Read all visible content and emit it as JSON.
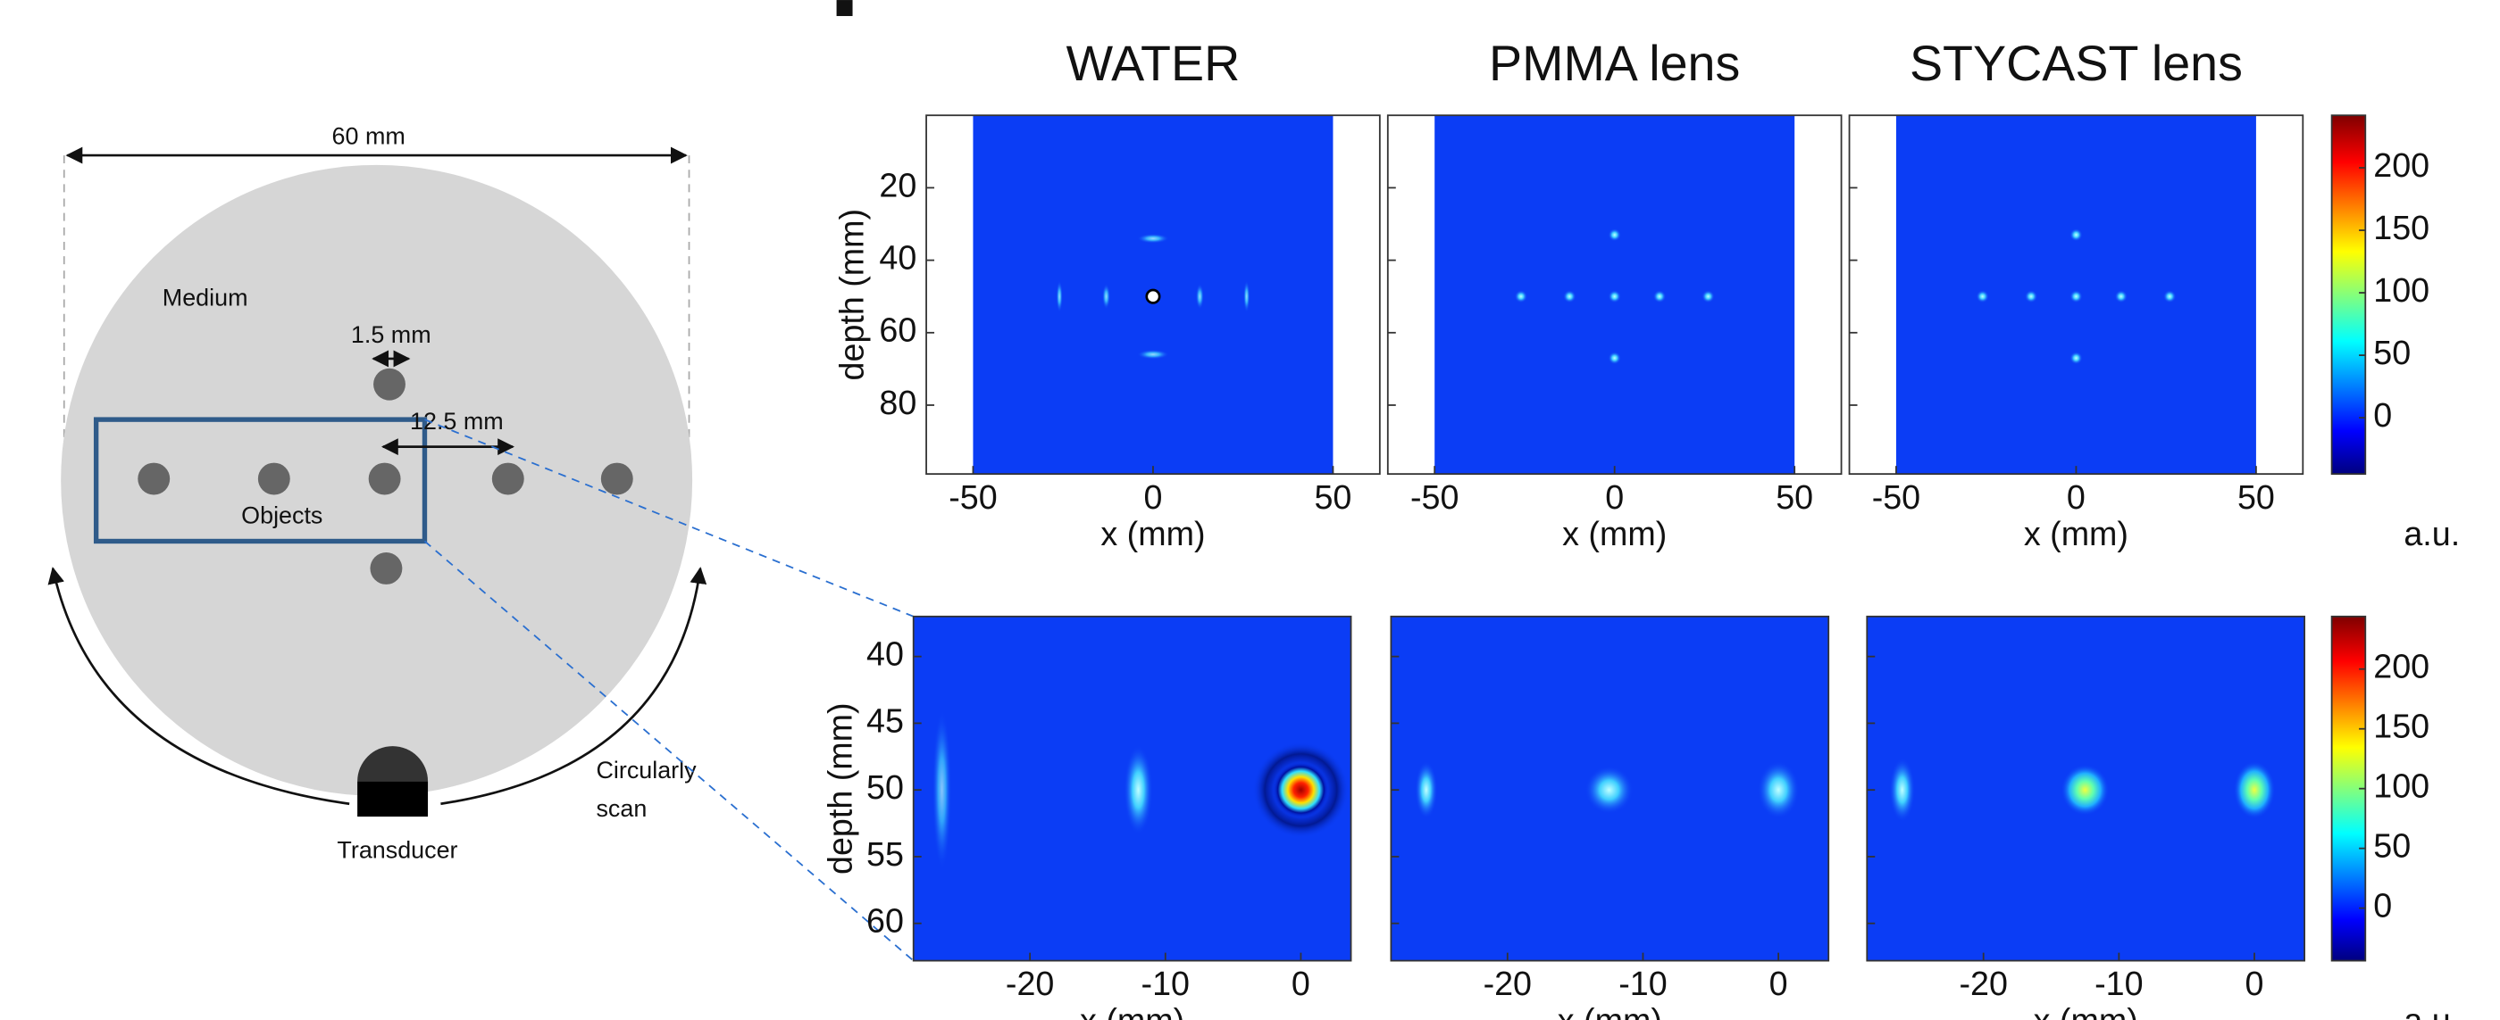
{
  "diagram": {
    "width_label": "60 mm",
    "medium": "Medium",
    "spacing_small": "1.5 mm",
    "spacing_large": "12.5 mm",
    "objects": "Objects",
    "transducer": "Transducer",
    "scan": [
      "Circularly",
      "scan"
    ]
  },
  "columns": [
    "WATER",
    "PMMA lens",
    "STYCAST lens"
  ],
  "top_row": {
    "y_label": "depth (mm)",
    "x_label": "x (mm)",
    "xlim": [
      -63,
      63
    ],
    "xticks": [
      -50,
      0,
      50
    ],
    "ylim": [
      0,
      99
    ],
    "yticks": [
      20,
      40,
      60,
      80
    ],
    "colorbar": {
      "lim": [
        -45,
        242
      ],
      "ticks": [
        0,
        50,
        100,
        150,
        200
      ],
      "label": "a.u."
    }
  },
  "bottom_row": {
    "y_label": "depth (mm)",
    "x_label": "x (mm)",
    "xlim": [
      -28.6,
      3.7
    ],
    "xticks": [
      -20,
      -10,
      0
    ],
    "ylim": [
      37,
      62.8
    ],
    "yticks": [
      40,
      45,
      50,
      55,
      60
    ],
    "colorbar": {
      "lim": [
        -44,
        244
      ],
      "ticks": [
        0,
        50,
        100,
        150,
        200
      ],
      "label": "a.u."
    }
  }
}
